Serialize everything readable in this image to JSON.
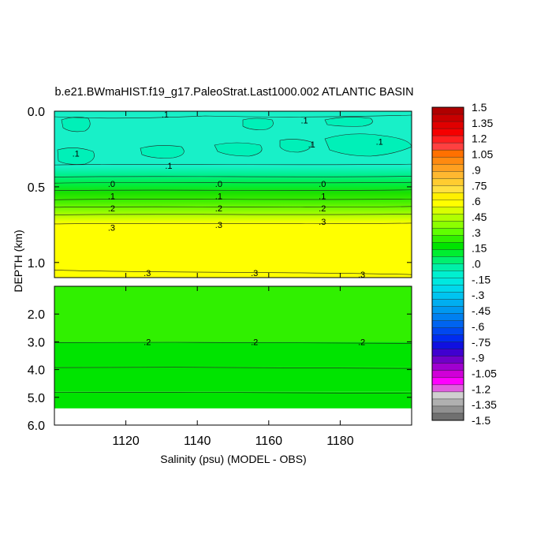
{
  "chart_data": {
    "type": "heatmap",
    "title": "b.e21.BWmaHIST.f19_g17.PaleoStrat.Last1000.002 ATLANTIC BASIN",
    "xlabel": "Salinity (psu) (MODEL - OBS)",
    "ylabel": "DEPTH (km)",
    "x_range": [
      1100,
      1200
    ],
    "x_ticks": [
      "1120",
      "1140",
      "1160",
      "1180"
    ],
    "upper_panel": {
      "y_range": [
        0.0,
        1.1
      ],
      "y_ticks": [
        "0.0",
        "0.5",
        "1.0"
      ],
      "depth_color_profile": [
        {
          "depth": 0.0,
          "value": -0.09
        },
        {
          "depth": 0.35,
          "value": -0.08
        },
        {
          "depth": 0.43,
          "value": -0.03
        },
        {
          "depth": 0.47,
          "value": 0.0
        },
        {
          "depth": 0.52,
          "value": 0.05
        },
        {
          "depth": 0.58,
          "value": 0.1
        },
        {
          "depth": 0.63,
          "value": 0.15
        },
        {
          "depth": 0.68,
          "value": 0.2
        },
        {
          "depth": 0.74,
          "value": 0.3
        },
        {
          "depth": 1.1,
          "value": 0.3
        }
      ],
      "contour_labels": [
        {
          "x": 1131,
          "depth": 0.02,
          "text": ".1"
        },
        {
          "x": 1170,
          "depth": 0.06,
          "text": ".1"
        },
        {
          "x": 1191,
          "depth": 0.2,
          "text": ".1"
        },
        {
          "x": 1106,
          "depth": 0.28,
          "text": ".1"
        },
        {
          "x": 1132,
          "depth": 0.36,
          "text": ".1"
        },
        {
          "x": 1172,
          "depth": 0.22,
          "text": ".1"
        },
        {
          "x": 1116,
          "depth": 0.48,
          "text": ".0"
        },
        {
          "x": 1146,
          "depth": 0.48,
          "text": ".0"
        },
        {
          "x": 1175,
          "depth": 0.48,
          "text": ".0"
        },
        {
          "x": 1116,
          "depth": 0.56,
          "text": ".1"
        },
        {
          "x": 1146,
          "depth": 0.56,
          "text": ".1"
        },
        {
          "x": 1175,
          "depth": 0.56,
          "text": ".1"
        },
        {
          "x": 1116,
          "depth": 0.64,
          "text": ".2"
        },
        {
          "x": 1146,
          "depth": 0.64,
          "text": ".2"
        },
        {
          "x": 1175,
          "depth": 0.64,
          "text": ".2"
        },
        {
          "x": 1116,
          "depth": 0.77,
          "text": ".3"
        },
        {
          "x": 1146,
          "depth": 0.75,
          "text": ".3"
        },
        {
          "x": 1175,
          "depth": 0.73,
          "text": ".3"
        },
        {
          "x": 1126,
          "depth": 1.07,
          "text": ".3"
        },
        {
          "x": 1156,
          "depth": 1.07,
          "text": ".3"
        },
        {
          "x": 1186,
          "depth": 1.08,
          "text": ".3"
        }
      ]
    },
    "lower_panel": {
      "y_range": [
        1.0,
        6.0
      ],
      "y_ticks": [
        "2.0",
        "3.0",
        "4.0",
        "5.0",
        "6.0"
      ],
      "bands": [
        {
          "from": 1.0,
          "to": 3.0,
          "value": 0.25
        },
        {
          "from": 3.0,
          "to": 3.9,
          "value": 0.2
        },
        {
          "from": 3.9,
          "to": 4.8,
          "value": 0.15
        },
        {
          "from": 4.8,
          "to": 5.4,
          "value": 0.2
        }
      ],
      "no_data_below_depth": 5.4,
      "contour_labels": [
        {
          "x": 1126,
          "depth": 3.0,
          "text": ".2"
        },
        {
          "x": 1156,
          "depth": 3.0,
          "text": ".2"
        },
        {
          "x": 1186,
          "depth": 3.0,
          "text": ".2"
        }
      ]
    },
    "colorbar": {
      "labels": [
        "1.5",
        "1.35",
        "1.2",
        "1.05",
        ".9",
        ".75",
        ".6",
        ".45",
        ".3",
        ".15",
        ".0",
        "-.15",
        "-.3",
        "-.45",
        "-.6",
        "-.75",
        "-.9",
        "-1.05",
        "-1.2",
        "-1.35",
        "-1.5"
      ],
      "colors": [
        "#b00000",
        "#c80000",
        "#e00000",
        "#f50000",
        "#ff2020",
        "#ff4040",
        "#ff7000",
        "#ff8a10",
        "#ffa020",
        "#ffb830",
        "#ffcc30",
        "#ffe040",
        "#fff000",
        "#ffff00",
        "#d8ff00",
        "#b0ff00",
        "#8cff00",
        "#60ff00",
        "#30f000",
        "#00e400",
        "#00ee30",
        "#00f070",
        "#00f0a8",
        "#00f0d0",
        "#00e8e0",
        "#00d8ec",
        "#00c4f0",
        "#00aef0",
        "#0098f0",
        "#0080f0",
        "#0064f0",
        "#0048f0",
        "#002cf0",
        "#1010e0",
        "#4000d0",
        "#7000c8",
        "#a000d0",
        "#d000d8",
        "#ff00ff",
        "#e060e0",
        "#d0d0d0",
        "#b0b0b0",
        "#909090",
        "#707070"
      ]
    }
  }
}
